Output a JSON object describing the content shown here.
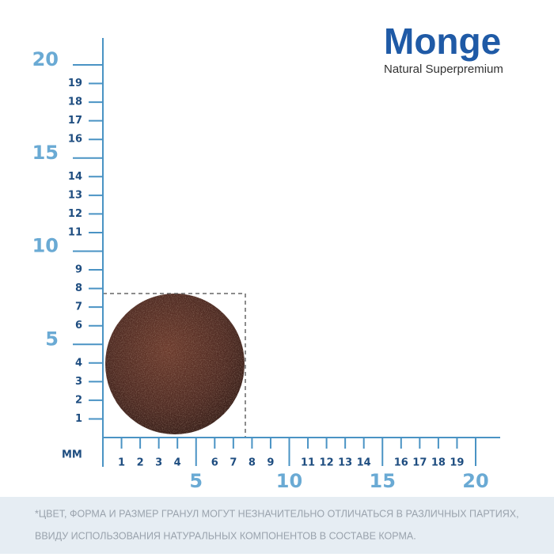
{
  "logo": {
    "brand": "Monge",
    "tagline": "Natural Superpremium"
  },
  "ruler": {
    "unit": "MM",
    "y_minor": [
      1,
      2,
      3,
      4,
      6,
      7,
      8,
      9,
      11,
      12,
      13,
      14,
      16,
      17,
      18,
      19
    ],
    "y_major": [
      5,
      10,
      15,
      20
    ],
    "x_minor": [
      1,
      2,
      3,
      4,
      6,
      7,
      8,
      9,
      11,
      12,
      13,
      14,
      16,
      17,
      18,
      19
    ],
    "x_major": [
      5,
      10,
      15,
      20
    ]
  },
  "disclaimer": [
    "*ЦВЕТ, ФОРМА И РАЗМЕР ГРАНУЛ МОГУТ НЕЗНАЧИТЕЛЬНО ОТЛИЧАТЬСЯ В РАЗЛИЧНЫХ ПАРТИЯХ,",
    "ВВИДУ ИСПОЛЬЗОВАНИЯ НАТУРАЛЬНЫХ КОМПОНЕНТОВ В СОСТАВЕ КОРМА."
  ]
}
